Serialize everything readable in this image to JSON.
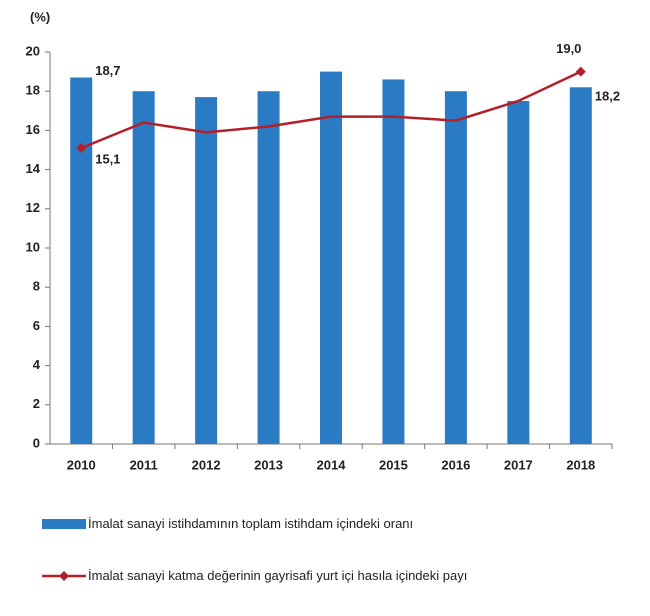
{
  "chart_data": {
    "type": "bar",
    "y_label": "(%)",
    "categories": [
      "2010",
      "2011",
      "2012",
      "2013",
      "2014",
      "2015",
      "2016",
      "2017",
      "2018"
    ],
    "series": [
      {
        "name": "İmalat sanayi istihdamının toplam istihdam içindeki oranı",
        "type": "bar",
        "color": "#2b7bc4",
        "values": [
          18.7,
          18.0,
          17.7,
          18.0,
          19.0,
          18.6,
          18.0,
          17.5,
          18.2
        ],
        "value_labels": [
          "18,7",
          null,
          null,
          null,
          null,
          null,
          null,
          null,
          "18,2"
        ]
      },
      {
        "name": "İmalat sanayi katma değerinin gayrisafi yurt içi hasıla içindeki payı",
        "type": "line",
        "color": "#b2202a",
        "values": [
          15.1,
          16.4,
          15.9,
          16.2,
          16.7,
          16.7,
          16.5,
          17.5,
          19.0
        ],
        "value_labels": [
          "15,1",
          null,
          null,
          null,
          null,
          null,
          null,
          null,
          "19,0"
        ]
      }
    ],
    "ylim": [
      0,
      20
    ],
    "yticks": [
      0,
      2,
      4,
      6,
      8,
      10,
      12,
      14,
      16,
      18,
      20
    ],
    "grid": false
  }
}
